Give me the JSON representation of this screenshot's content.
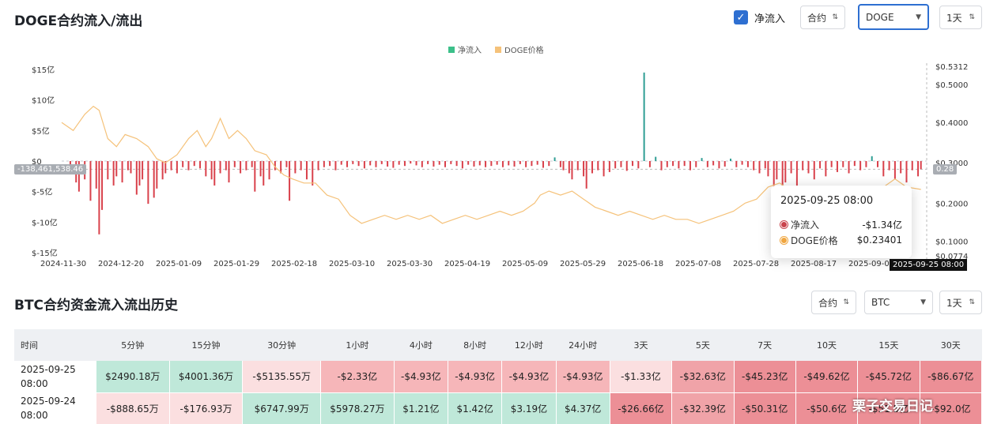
{
  "chart_section": {
    "title": "DOGE合约流入/流出",
    "checkbox_label": "净流入",
    "contract_select": "合约",
    "coin_select": "DOGE",
    "interval_select": "1天"
  },
  "tooltip": {
    "time": "2025-09-25 08:00",
    "rows": [
      {
        "name": "净流入",
        "value": "-$1.34亿",
        "color": "#c9434c"
      },
      {
        "name": "DOGE价格",
        "value": "$0.23401",
        "color": "#f0a640"
      }
    ]
  },
  "axis_tags": {
    "left_value": "-138,461,538.46",
    "right_value": "0.28",
    "time": "2025-09-25 08:00"
  },
  "chart_data": {
    "type": "bar+line",
    "legend": [
      {
        "name": "净流入",
        "color": "#3cc08a"
      },
      {
        "name": "DOGE价格",
        "color": "#f5c27a"
      }
    ],
    "x_tick_labels": [
      "2024-11-30",
      "2024-12-20",
      "2025-01-09",
      "2025-01-29",
      "2025-02-18",
      "2025-03-10",
      "2025-03-30",
      "2025-04-19",
      "2025-05-09",
      "2025-05-29",
      "2025-06-18",
      "2025-07-08",
      "2025-07-28",
      "2025-08-17",
      "2025-09-06"
    ],
    "y_left_ticks": [
      "$15亿",
      "$10亿",
      "$5亿",
      "$0",
      "$-5亿",
      "$-10亿",
      "$-15亿"
    ],
    "y_left_range": [
      -15,
      15
    ],
    "y_left_unit": "亿",
    "y_right_ticks": [
      "$0.5312",
      "$0.5000",
      "$0.4000",
      "$0.3000",
      "$0.2000",
      "$0.1000",
      "$0.0774"
    ],
    "y_right_range": [
      0.0774,
      0.5312
    ],
    "n_days": 300,
    "net_inflow_bars": [
      {
        "day": 3,
        "v": -1.5
      },
      {
        "day": 5,
        "v": -3.5
      },
      {
        "day": 6,
        "v": -5.0
      },
      {
        "day": 8,
        "v": -3.0
      },
      {
        "day": 10,
        "v": -6.5
      },
      {
        "day": 12,
        "v": -4.5
      },
      {
        "day": 13,
        "v": -12.0
      },
      {
        "day": 14,
        "v": -8.0
      },
      {
        "day": 16,
        "v": -3.0
      },
      {
        "day": 18,
        "v": -4.0
      },
      {
        "day": 19,
        "v": -2.5
      },
      {
        "day": 21,
        "v": -3.5
      },
      {
        "day": 23,
        "v": -1.5
      },
      {
        "day": 24,
        "v": -2.0
      },
      {
        "day": 26,
        "v": -5.5
      },
      {
        "day": 27,
        "v": -4.0
      },
      {
        "day": 28,
        "v": -3.0
      },
      {
        "day": 30,
        "v": -7.0
      },
      {
        "day": 32,
        "v": -6.0
      },
      {
        "day": 33,
        "v": -4.5
      },
      {
        "day": 35,
        "v": -3.0
      },
      {
        "day": 36,
        "v": -2.0
      },
      {
        "day": 38,
        "v": -1.5
      },
      {
        "day": 40,
        "v": -2.0
      },
      {
        "day": 42,
        "v": -1.0
      },
      {
        "day": 44,
        "v": -1.5
      },
      {
        "day": 46,
        "v": -0.8
      },
      {
        "day": 48,
        "v": -1.2
      },
      {
        "day": 50,
        "v": -2.5
      },
      {
        "day": 52,
        "v": -3.0
      },
      {
        "day": 53,
        "v": -4.0
      },
      {
        "day": 55,
        "v": -2.0
      },
      {
        "day": 57,
        "v": -1.5
      },
      {
        "day": 58,
        "v": -3.5
      },
      {
        "day": 60,
        "v": -1.0
      },
      {
        "day": 62,
        "v": -2.0
      },
      {
        "day": 64,
        "v": -1.5
      },
      {
        "day": 66,
        "v": -1.0
      },
      {
        "day": 67,
        "v": -5.0
      },
      {
        "day": 69,
        "v": -2.5
      },
      {
        "day": 70,
        "v": -4.0
      },
      {
        "day": 72,
        "v": -3.0
      },
      {
        "day": 74,
        "v": -1.5
      },
      {
        "day": 76,
        "v": -2.0
      },
      {
        "day": 78,
        "v": -1.0
      },
      {
        "day": 79,
        "v": -6.5
      },
      {
        "day": 81,
        "v": -2.0
      },
      {
        "day": 83,
        "v": -1.5
      },
      {
        "day": 85,
        "v": -3.0
      },
      {
        "day": 87,
        "v": -4.0
      },
      {
        "day": 89,
        "v": -1.5
      },
      {
        "day": 91,
        "v": -1.0
      },
      {
        "day": 93,
        "v": -0.8
      },
      {
        "day": 95,
        "v": -1.5
      },
      {
        "day": 97,
        "v": -0.6
      },
      {
        "day": 99,
        "v": -1.0
      },
      {
        "day": 101,
        "v": -0.5
      },
      {
        "day": 103,
        "v": -0.8
      },
      {
        "day": 105,
        "v": -1.2
      },
      {
        "day": 107,
        "v": -0.7
      },
      {
        "day": 109,
        "v": -1.0
      },
      {
        "day": 111,
        "v": -0.5
      },
      {
        "day": 113,
        "v": -0.9
      },
      {
        "day": 115,
        "v": -1.1
      },
      {
        "day": 117,
        "v": -0.6
      },
      {
        "day": 119,
        "v": -0.8
      },
      {
        "day": 121,
        "v": -0.4
      },
      {
        "day": 123,
        "v": -0.7
      },
      {
        "day": 125,
        "v": -1.0
      },
      {
        "day": 127,
        "v": -0.5
      },
      {
        "day": 129,
        "v": -0.9
      },
      {
        "day": 131,
        "v": -0.6
      },
      {
        "day": 133,
        "v": -1.0
      },
      {
        "day": 135,
        "v": -0.5
      },
      {
        "day": 137,
        "v": -0.8
      },
      {
        "day": 139,
        "v": -1.2
      },
      {
        "day": 141,
        "v": -0.6
      },
      {
        "day": 143,
        "v": -0.9
      },
      {
        "day": 145,
        "v": -0.7
      },
      {
        "day": 147,
        "v": -1.0
      },
      {
        "day": 149,
        "v": -0.8
      },
      {
        "day": 151,
        "v": -0.6
      },
      {
        "day": 153,
        "v": -1.0
      },
      {
        "day": 155,
        "v": -0.7
      },
      {
        "day": 157,
        "v": -0.9
      },
      {
        "day": 159,
        "v": -0.5
      },
      {
        "day": 161,
        "v": -1.0
      },
      {
        "day": 163,
        "v": -0.8
      },
      {
        "day": 165,
        "v": -0.6
      },
      {
        "day": 167,
        "v": -1.1
      },
      {
        "day": 169,
        "v": -0.8
      },
      {
        "day": 171,
        "v": 0.6
      },
      {
        "day": 173,
        "v": -1.0
      },
      {
        "day": 174,
        "v": -1.5
      },
      {
        "day": 176,
        "v": -2.0
      },
      {
        "day": 177,
        "v": -3.0
      },
      {
        "day": 179,
        "v": -1.5
      },
      {
        "day": 181,
        "v": -2.5
      },
      {
        "day": 182,
        "v": -4.5
      },
      {
        "day": 184,
        "v": -2.0
      },
      {
        "day": 186,
        "v": -1.5
      },
      {
        "day": 188,
        "v": -2.5
      },
      {
        "day": 190,
        "v": -1.8
      },
      {
        "day": 192,
        "v": -1.2
      },
      {
        "day": 194,
        "v": -1.0
      },
      {
        "day": 196,
        "v": -1.6
      },
      {
        "day": 198,
        "v": -0.8
      },
      {
        "day": 200,
        "v": -1.2
      },
      {
        "day": 202,
        "v": 14.5
      },
      {
        "day": 204,
        "v": -1.0
      },
      {
        "day": 206,
        "v": 0.7
      },
      {
        "day": 208,
        "v": -1.5
      },
      {
        "day": 210,
        "v": -1.0
      },
      {
        "day": 212,
        "v": -0.8
      },
      {
        "day": 214,
        "v": -1.2
      },
      {
        "day": 216,
        "v": -0.8
      },
      {
        "day": 218,
        "v": -1.5
      },
      {
        "day": 220,
        "v": -1.0
      },
      {
        "day": 222,
        "v": 0.5
      },
      {
        "day": 224,
        "v": -1.0
      },
      {
        "day": 226,
        "v": -0.7
      },
      {
        "day": 228,
        "v": -1.2
      },
      {
        "day": 230,
        "v": -0.9
      },
      {
        "day": 232,
        "v": 0.4
      },
      {
        "day": 234,
        "v": -1.0
      },
      {
        "day": 236,
        "v": -0.6
      },
      {
        "day": 238,
        "v": -1.0
      },
      {
        "day": 240,
        "v": -1.5
      },
      {
        "day": 242,
        "v": -2.0
      },
      {
        "day": 244,
        "v": -1.2
      },
      {
        "day": 245,
        "v": -2.5
      },
      {
        "day": 247,
        "v": -4.5
      },
      {
        "day": 248,
        "v": -3.0
      },
      {
        "day": 250,
        "v": -6.5
      },
      {
        "day": 251,
        "v": -3.5
      },
      {
        "day": 253,
        "v": -2.0
      },
      {
        "day": 255,
        "v": -5.0
      },
      {
        "day": 257,
        "v": -1.5
      },
      {
        "day": 259,
        "v": -2.0
      },
      {
        "day": 261,
        "v": -3.0
      },
      {
        "day": 263,
        "v": -1.2
      },
      {
        "day": 265,
        "v": -2.5
      },
      {
        "day": 267,
        "v": -1.0
      },
      {
        "day": 269,
        "v": -1.8
      },
      {
        "day": 271,
        "v": -1.0
      },
      {
        "day": 273,
        "v": -2.0
      },
      {
        "day": 275,
        "v": -0.8
      },
      {
        "day": 277,
        "v": -1.5
      },
      {
        "day": 279,
        "v": -1.0
      },
      {
        "day": 281,
        "v": 0.8
      },
      {
        "day": 283,
        "v": -1.0
      },
      {
        "day": 285,
        "v": -2.5
      },
      {
        "day": 287,
        "v": -1.5
      },
      {
        "day": 289,
        "v": -3.0
      },
      {
        "day": 291,
        "v": -2.0
      },
      {
        "day": 293,
        "v": -3.5
      },
      {
        "day": 295,
        "v": -1.5
      },
      {
        "day": 297,
        "v": -2.5
      },
      {
        "day": 298,
        "v": -1.34
      }
    ],
    "price_line": [
      {
        "day": 0,
        "p": 0.4
      },
      {
        "day": 4,
        "p": 0.38
      },
      {
        "day": 8,
        "p": 0.42
      },
      {
        "day": 11,
        "p": 0.44
      },
      {
        "day": 13,
        "p": 0.43
      },
      {
        "day": 16,
        "p": 0.36
      },
      {
        "day": 19,
        "p": 0.34
      },
      {
        "day": 22,
        "p": 0.37
      },
      {
        "day": 26,
        "p": 0.36
      },
      {
        "day": 30,
        "p": 0.34
      },
      {
        "day": 33,
        "p": 0.31
      },
      {
        "day": 36,
        "p": 0.3
      },
      {
        "day": 40,
        "p": 0.32
      },
      {
        "day": 44,
        "p": 0.36
      },
      {
        "day": 47,
        "p": 0.38
      },
      {
        "day": 50,
        "p": 0.34
      },
      {
        "day": 52,
        "p": 0.36
      },
      {
        "day": 55,
        "p": 0.41
      },
      {
        "day": 58,
        "p": 0.36
      },
      {
        "day": 61,
        "p": 0.38
      },
      {
        "day": 64,
        "p": 0.36
      },
      {
        "day": 67,
        "p": 0.33
      },
      {
        "day": 71,
        "p": 0.32
      },
      {
        "day": 74,
        "p": 0.29
      },
      {
        "day": 77,
        "p": 0.27
      },
      {
        "day": 80,
        "p": 0.26
      },
      {
        "day": 84,
        "p": 0.25
      },
      {
        "day": 88,
        "p": 0.25
      },
      {
        "day": 92,
        "p": 0.22
      },
      {
        "day": 96,
        "p": 0.21
      },
      {
        "day": 100,
        "p": 0.17
      },
      {
        "day": 104,
        "p": 0.15
      },
      {
        "day": 108,
        "p": 0.16
      },
      {
        "day": 112,
        "p": 0.17
      },
      {
        "day": 116,
        "p": 0.16
      },
      {
        "day": 120,
        "p": 0.17
      },
      {
        "day": 124,
        "p": 0.16
      },
      {
        "day": 128,
        "p": 0.17
      },
      {
        "day": 132,
        "p": 0.15
      },
      {
        "day": 136,
        "p": 0.16
      },
      {
        "day": 140,
        "p": 0.17
      },
      {
        "day": 144,
        "p": 0.16
      },
      {
        "day": 148,
        "p": 0.17
      },
      {
        "day": 152,
        "p": 0.18
      },
      {
        "day": 156,
        "p": 0.17
      },
      {
        "day": 160,
        "p": 0.18
      },
      {
        "day": 164,
        "p": 0.2
      },
      {
        "day": 166,
        "p": 0.22
      },
      {
        "day": 169,
        "p": 0.23
      },
      {
        "day": 173,
        "p": 0.22
      },
      {
        "day": 177,
        "p": 0.23
      },
      {
        "day": 181,
        "p": 0.21
      },
      {
        "day": 185,
        "p": 0.19
      },
      {
        "day": 189,
        "p": 0.18
      },
      {
        "day": 193,
        "p": 0.17
      },
      {
        "day": 197,
        "p": 0.18
      },
      {
        "day": 201,
        "p": 0.17
      },
      {
        "day": 205,
        "p": 0.16
      },
      {
        "day": 209,
        "p": 0.17
      },
      {
        "day": 213,
        "p": 0.16
      },
      {
        "day": 217,
        "p": 0.16
      },
      {
        "day": 221,
        "p": 0.15
      },
      {
        "day": 225,
        "p": 0.16
      },
      {
        "day": 229,
        "p": 0.17
      },
      {
        "day": 233,
        "p": 0.18
      },
      {
        "day": 237,
        "p": 0.2
      },
      {
        "day": 241,
        "p": 0.21
      },
      {
        "day": 245,
        "p": 0.24
      },
      {
        "day": 249,
        "p": 0.25
      },
      {
        "day": 253,
        "p": 0.23
      },
      {
        "day": 257,
        "p": 0.22
      },
      {
        "day": 261,
        "p": 0.23
      },
      {
        "day": 265,
        "p": 0.22
      },
      {
        "day": 269,
        "p": 0.23
      },
      {
        "day": 273,
        "p": 0.24
      },
      {
        "day": 277,
        "p": 0.22
      },
      {
        "day": 281,
        "p": 0.21
      },
      {
        "day": 285,
        "p": 0.24
      },
      {
        "day": 289,
        "p": 0.26
      },
      {
        "day": 293,
        "p": 0.24
      },
      {
        "day": 298,
        "p": 0.234
      }
    ]
  },
  "history_section": {
    "title": "BTC合约资金流入流出历史",
    "contract_select": "合约",
    "coin_select": "BTC",
    "interval_select": "1天"
  },
  "table": {
    "headers": [
      "时间",
      "5分钟",
      "15分钟",
      "30分钟",
      "1小时",
      "4小时",
      "8小时",
      "12小时",
      "24小时",
      "3天",
      "5天",
      "7天",
      "10天",
      "15天",
      "30天"
    ],
    "rows": [
      {
        "date": "2025-09-25",
        "time": "08:00",
        "cells": [
          {
            "v": "$2490.18万",
            "bg": "#bfe8d9"
          },
          {
            "v": "$4001.36万",
            "bg": "#bfe8d9"
          },
          {
            "v": "-$5135.55万",
            "bg": "#fbdfe0"
          },
          {
            "v": "-$2.33亿",
            "bg": "#f6b6b9"
          },
          {
            "v": "-$4.93亿",
            "bg": "#f6b6b9"
          },
          {
            "v": "-$4.93亿",
            "bg": "#f6b6b9"
          },
          {
            "v": "-$4.93亿",
            "bg": "#f6b6b9"
          },
          {
            "v": "-$4.93亿",
            "bg": "#f6b6b9"
          },
          {
            "v": "-$1.33亿",
            "bg": "#fbdfe0"
          },
          {
            "v": "-$32.63亿",
            "bg": "#f0a3a8"
          },
          {
            "v": "-$45.23亿",
            "bg": "#ec8f96"
          },
          {
            "v": "-$49.62亿",
            "bg": "#ec8f96"
          },
          {
            "v": "-$45.72亿",
            "bg": "#ec8f96"
          },
          {
            "v": "-$86.67亿",
            "bg": "#ec8f96"
          }
        ]
      },
      {
        "date": "2025-09-24",
        "time": "08:00",
        "cells": [
          {
            "v": "-$888.65万",
            "bg": "#fbdfe0"
          },
          {
            "v": "-$176.93万",
            "bg": "#fbdfe0"
          },
          {
            "v": "$6747.99万",
            "bg": "#bfe8d9"
          },
          {
            "v": "$5978.27万",
            "bg": "#bfe8d9"
          },
          {
            "v": "$1.21亿",
            "bg": "#bfe8d9"
          },
          {
            "v": "$1.42亿",
            "bg": "#bfe8d9"
          },
          {
            "v": "$3.19亿",
            "bg": "#bfe8d9"
          },
          {
            "v": "$4.37亿",
            "bg": "#bfe8d9"
          },
          {
            "v": "-$26.66亿",
            "bg": "#ec8f96"
          },
          {
            "v": "-$32.39亿",
            "bg": "#f0a3a8"
          },
          {
            "v": "-$50.31亿",
            "bg": "#ec8f96"
          },
          {
            "v": "-$50.6亿",
            "bg": "#ec8f96"
          },
          {
            "v": "-$51.5亿",
            "bg": "#ec8f96"
          },
          {
            "v": "-$92.0亿",
            "bg": "#ec8f96"
          }
        ]
      }
    ]
  },
  "watermark": "栗子交易日记"
}
